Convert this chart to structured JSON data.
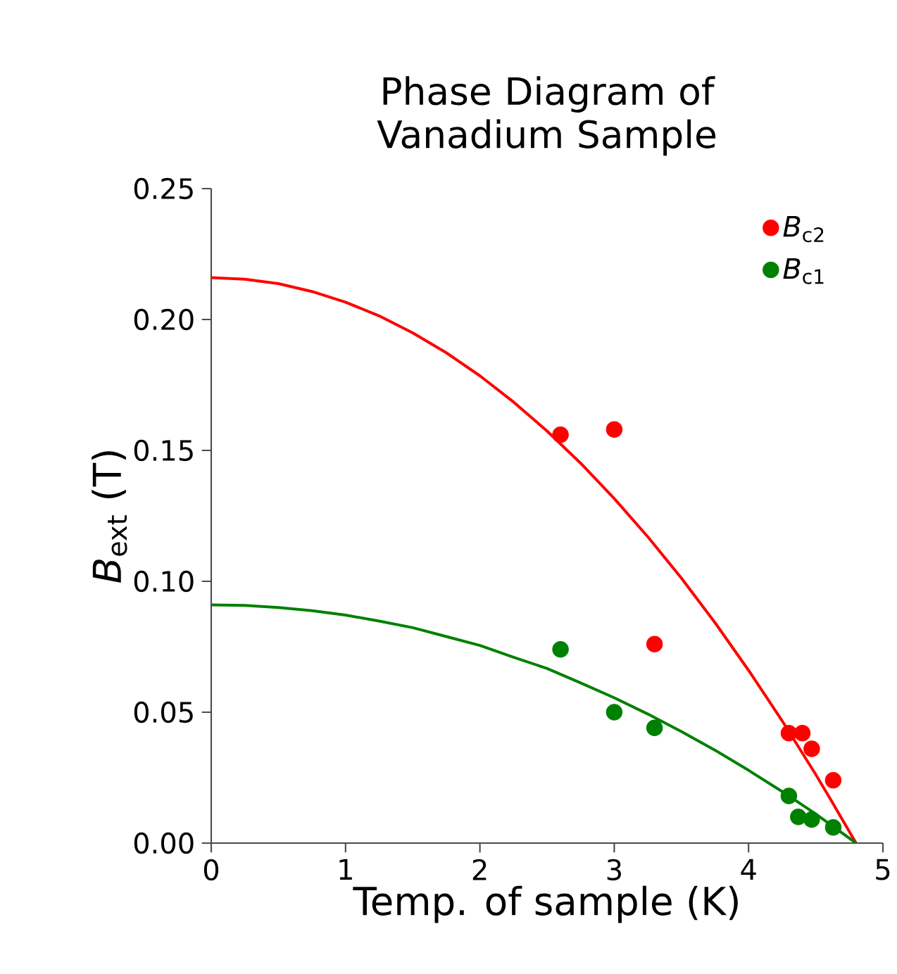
{
  "chart_data": {
    "type": "scatter",
    "title": "Phase Diagram of Vanadium Sample",
    "xlabel": "Temp. of sample (K)",
    "ylabel": "*B*$_{ext}$ (T)",
    "xlim": [
      0,
      5
    ],
    "ylim": [
      0,
      0.25
    ],
    "xticks": [
      0,
      1,
      2,
      3,
      4,
      5
    ],
    "yticks": [
      {
        "value": 0,
        "label": "0.00"
      },
      {
        "value": 0.05,
        "label": "0.05"
      },
      {
        "value": 0.1,
        "label": "0.10"
      },
      {
        "value": 0.15,
        "label": "0.15"
      },
      {
        "value": 0.2,
        "label": "0.20"
      },
      {
        "value": 0.25,
        "label": "0.25"
      }
    ],
    "legend": "top right",
    "grid": false,
    "series": [
      {
        "name": "*B*$_{c2}$",
        "marker": "circle",
        "color": "#ff0000",
        "x": [
          2.6,
          3.0,
          3.3,
          4.3,
          4.4,
          4.47,
          4.63
        ],
        "values": [
          0.156,
          0.158,
          0.076,
          0.042,
          0.042,
          0.036,
          0.024
        ]
      },
      {
        "name": "*B*$_{c1}$",
        "marker": "circle",
        "color": "#008000",
        "x": [
          2.6,
          3.0,
          3.3,
          4.3,
          4.37,
          4.47,
          4.63
        ],
        "values": [
          0.074,
          0.05,
          0.044,
          0.018,
          0.01,
          0.009,
          0.006
        ]
      },
      {
        "type": "line",
        "marker": "none",
        "color": "#ff0000",
        "x": [
          0,
          0.25,
          0.5,
          0.75,
          1,
          1.25,
          1.5,
          1.75,
          2,
          2.25,
          2.5,
          2.75,
          3,
          3.25,
          3.5,
          3.75,
          4,
          4.25,
          4.5,
          4.6,
          4.8
        ],
        "values": [
          0.216,
          0.2154,
          0.2137,
          0.2107,
          0.2066,
          0.2014,
          0.1949,
          0.1873,
          0.1785,
          0.1685,
          0.1574,
          0.1451,
          0.1316,
          0.117,
          0.1012,
          0.0842,
          0.066,
          0.0467,
          0.0262,
          0.0176,
          0
        ]
      },
      {
        "type": "line",
        "marker": "none",
        "color": "#008000",
        "x": [
          0,
          0.25,
          0.5,
          0.75,
          1,
          1.25,
          1.5,
          1.75,
          2,
          2.25,
          2.5,
          2.75,
          3,
          3.25,
          3.5,
          3.75,
          4,
          4.25,
          4.5,
          4.6,
          4.8
        ],
        "values": [
          0.091,
          0.0908,
          0.09,
          0.0888,
          0.0871,
          0.0848,
          0.0823,
          0.0789,
          0.0755,
          0.071,
          0.0667,
          0.0612,
          0.0555,
          0.0493,
          0.0426,
          0.0355,
          0.0278,
          0.0197,
          0.0111,
          0.0074,
          0
        ]
      }
    ]
  }
}
